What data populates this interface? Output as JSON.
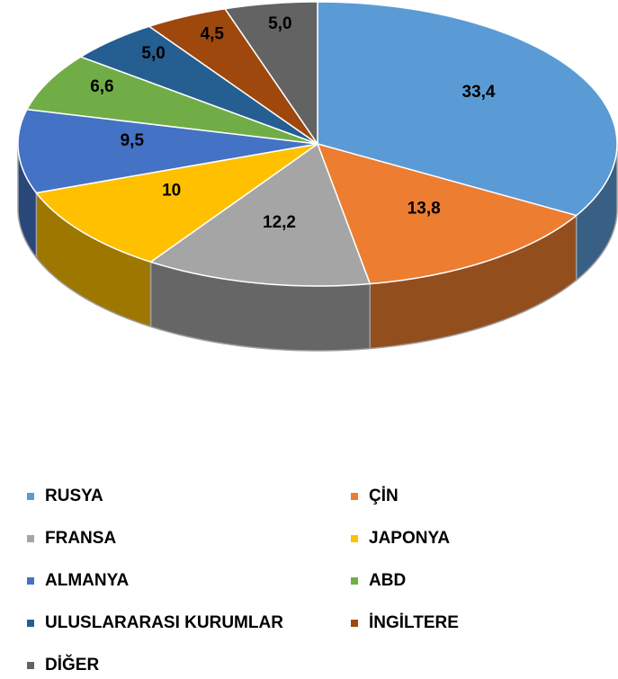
{
  "chart_data": {
    "type": "pie",
    "categories": [
      "RUSYA",
      "ÇİN",
      "FRANSA",
      "JAPONYA",
      "ALMANYA",
      "ABD",
      "ULUSLARARASI KURUMLAR",
      "İNGİLTERE",
      "DİĞER"
    ],
    "values": [
      33.4,
      13.8,
      12.2,
      10,
      9.5,
      6.6,
      5.0,
      4.5,
      5.0
    ],
    "value_labels": [
      "33,4",
      "13,8",
      "12,2",
      "10",
      "9,5",
      "6,6",
      "5,0",
      "4,5",
      "5,0"
    ],
    "colors": [
      "#5b9bd5",
      "#ed7d31",
      "#a5a5a5",
      "#ffc000",
      "#4472c4",
      "#70ad47",
      "#255e91",
      "#9e480e",
      "#636363"
    ]
  }
}
